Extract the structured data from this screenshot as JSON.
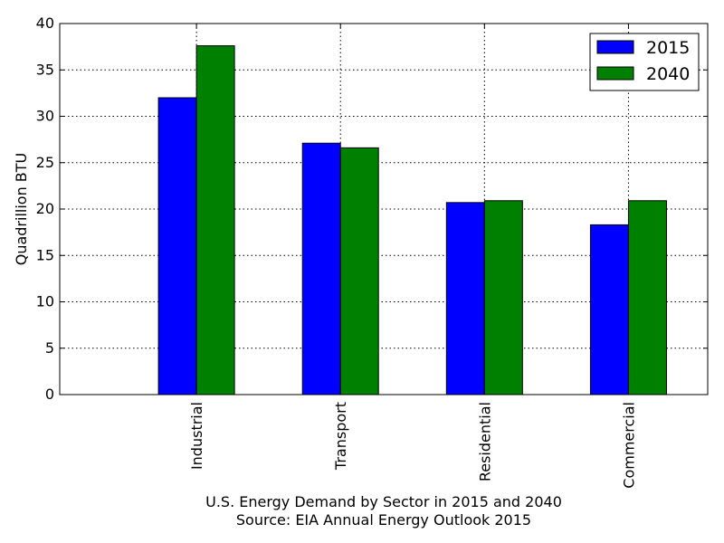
{
  "chart_data": {
    "type": "bar",
    "categories": [
      "Industrial",
      "Transport",
      "Residential",
      "Commercial"
    ],
    "series": [
      {
        "name": "2015",
        "color": "#0000ff",
        "values": [
          32.0,
          27.1,
          20.7,
          18.3
        ]
      },
      {
        "name": "2040",
        "color": "#008000",
        "values": [
          37.6,
          26.6,
          20.9,
          20.9
        ]
      }
    ],
    "ylabel": "Quadrillion BTU",
    "xlabel_lines": [
      "U.S. Energy Demand by Sector in 2015 and 2040",
      "Source: EIA Annual Energy Outlook 2015"
    ],
    "ylim": [
      0,
      40
    ],
    "yticks": [
      0,
      5,
      10,
      15,
      20,
      25,
      30,
      35,
      40
    ],
    "grid": true,
    "legend_position": "top-right"
  }
}
